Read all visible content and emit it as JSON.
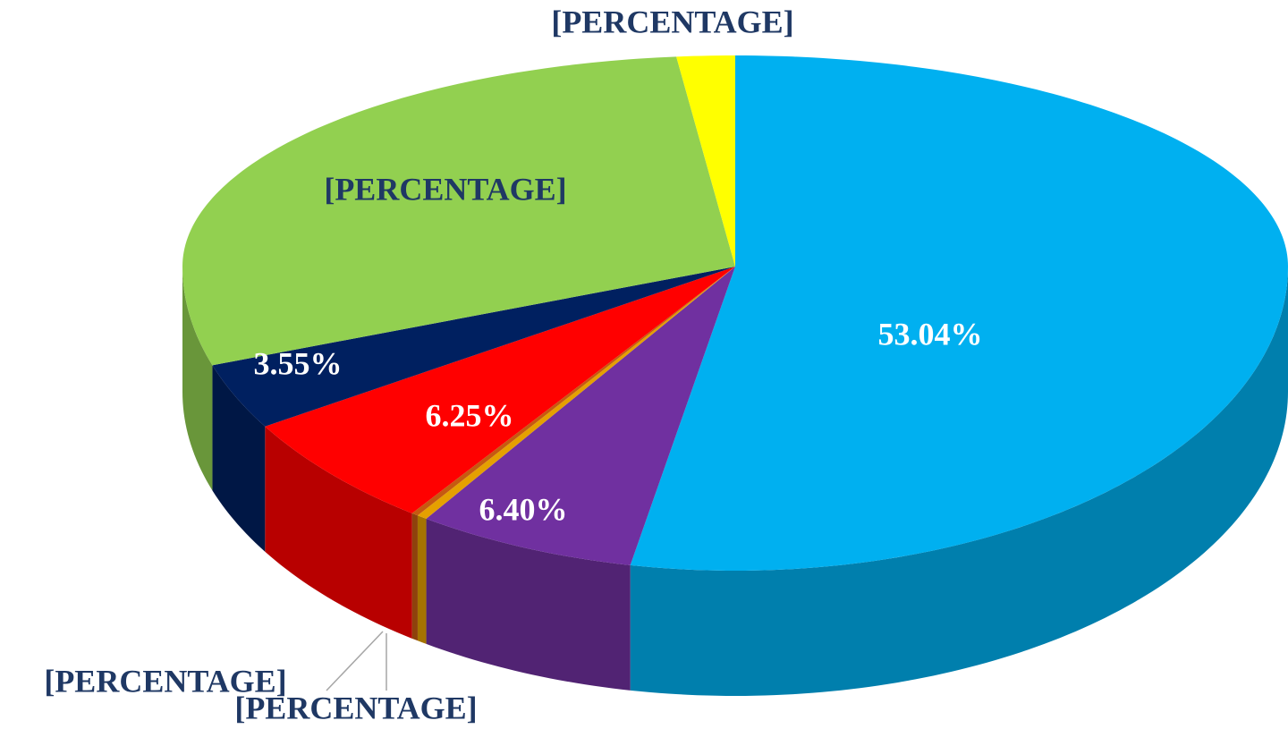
{
  "chart_data": {
    "type": "pie",
    "values": [
      53.04,
      6.4,
      0.3,
      0.2,
      6.25,
      3.55,
      28.56,
      1.7
    ],
    "value_labels": [
      "53.04%",
      "6.40%",
      "[PERCENTAGE]",
      "[PERCENTAGE]",
      "6.25%",
      "3.55%",
      "[PERCENTAGE]",
      "[PERCENTAGE]"
    ],
    "colors": [
      "#00b0f0",
      "#7030a0",
      "#e5a000",
      "#c55a11",
      "#ff0000",
      "#002060",
      "#92d050",
      "#ffff00"
    ],
    "label_colors": [
      "#ffffff",
      "#ffffff",
      "#1f3864",
      "#1f3864",
      "#ffffff",
      "#ffffff",
      "#1f3864",
      "#1f3864"
    ]
  }
}
